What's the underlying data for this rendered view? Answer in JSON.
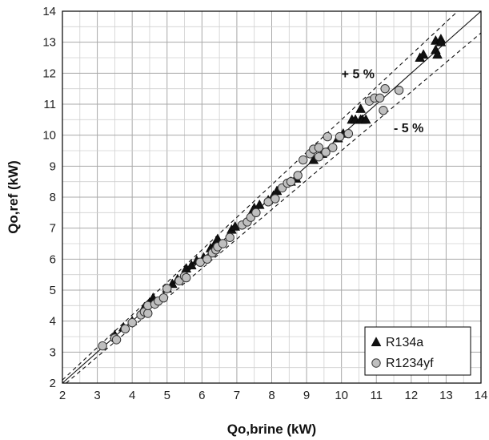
{
  "chart_data": {
    "type": "scatter",
    "xlabel": "Qo,brine (kW)",
    "ylabel": "Qo,ref (kW)",
    "xlim": [
      2,
      14
    ],
    "ylim": [
      2,
      14
    ],
    "xticks": [
      2,
      3,
      4,
      5,
      6,
      7,
      8,
      9,
      10,
      11,
      12,
      13,
      14
    ],
    "yticks": [
      2,
      3,
      4,
      5,
      6,
      7,
      8,
      9,
      10,
      11,
      12,
      13,
      14
    ],
    "grid": true,
    "legend_position": "bottom-right",
    "lines": [
      {
        "kind": "reference",
        "style": "solid",
        "factor": 1.0
      },
      {
        "kind": "plus-5-percent",
        "style": "dashed",
        "factor": 1.05
      },
      {
        "kind": "minus-5-percent",
        "style": "dashed",
        "factor": 0.95
      }
    ],
    "annotations": [
      {
        "text": "+ 5 %",
        "x": 10.0,
        "y": 12.0
      },
      {
        "text": "- 5 %",
        "x": 11.5,
        "y": 10.25
      }
    ],
    "series": [
      {
        "name": "R134a",
        "marker": "triangle",
        "color": "#111111",
        "points": [
          [
            3.5,
            3.55
          ],
          [
            3.75,
            3.8
          ],
          [
            4.0,
            4.0
          ],
          [
            4.35,
            4.45
          ],
          [
            4.5,
            4.6
          ],
          [
            4.6,
            4.75
          ],
          [
            5.0,
            5.05
          ],
          [
            5.15,
            5.2
          ],
          [
            5.3,
            5.35
          ],
          [
            5.55,
            5.7
          ],
          [
            5.7,
            5.8
          ],
          [
            5.85,
            5.95
          ],
          [
            6.05,
            6.05
          ],
          [
            6.25,
            6.35
          ],
          [
            6.35,
            6.45
          ],
          [
            6.4,
            6.55
          ],
          [
            6.45,
            6.65
          ],
          [
            6.85,
            6.95
          ],
          [
            6.95,
            7.05
          ],
          [
            7.45,
            7.55
          ],
          [
            7.5,
            7.65
          ],
          [
            7.65,
            7.75
          ],
          [
            7.9,
            7.9
          ],
          [
            8.05,
            8.05
          ],
          [
            8.15,
            8.2
          ],
          [
            8.55,
            8.5
          ],
          [
            8.7,
            8.6
          ],
          [
            9.2,
            9.2
          ],
          [
            9.45,
            9.4
          ],
          [
            9.9,
            9.9
          ],
          [
            10.05,
            10.05
          ],
          [
            10.3,
            10.5
          ],
          [
            10.4,
            10.5
          ],
          [
            10.55,
            10.5
          ],
          [
            10.6,
            10.5
          ],
          [
            10.7,
            10.5
          ],
          [
            10.55,
            10.85
          ],
          [
            12.25,
            12.5
          ],
          [
            12.35,
            12.6
          ],
          [
            12.7,
            12.75
          ],
          [
            12.75,
            12.6
          ],
          [
            12.7,
            13.05
          ],
          [
            12.85,
            13.1
          ],
          [
            12.85,
            13.0
          ]
        ]
      },
      {
        "name": "R1234yf",
        "marker": "circle",
        "color": "#bfbfbf",
        "points": [
          [
            3.15,
            3.2
          ],
          [
            3.5,
            3.45
          ],
          [
            3.55,
            3.4
          ],
          [
            3.8,
            3.75
          ],
          [
            4.0,
            3.95
          ],
          [
            4.25,
            4.2
          ],
          [
            4.35,
            4.3
          ],
          [
            4.45,
            4.25
          ],
          [
            4.45,
            4.5
          ],
          [
            4.65,
            4.55
          ],
          [
            4.75,
            4.65
          ],
          [
            4.9,
            4.75
          ],
          [
            5.0,
            5.05
          ],
          [
            5.35,
            5.3
          ],
          [
            5.5,
            5.45
          ],
          [
            5.55,
            5.4
          ],
          [
            5.95,
            5.9
          ],
          [
            6.15,
            6.0
          ],
          [
            6.3,
            6.2
          ],
          [
            6.4,
            6.3
          ],
          [
            6.45,
            6.4
          ],
          [
            6.6,
            6.5
          ],
          [
            6.8,
            6.7
          ],
          [
            7.15,
            7.1
          ],
          [
            7.3,
            7.2
          ],
          [
            7.4,
            7.35
          ],
          [
            7.55,
            7.5
          ],
          [
            7.9,
            7.85
          ],
          [
            8.1,
            7.95
          ],
          [
            8.3,
            8.3
          ],
          [
            8.45,
            8.45
          ],
          [
            8.55,
            8.5
          ],
          [
            8.75,
            8.7
          ],
          [
            8.9,
            9.2
          ],
          [
            9.1,
            9.4
          ],
          [
            9.2,
            9.55
          ],
          [
            9.35,
            9.6
          ],
          [
            9.35,
            9.3
          ],
          [
            9.55,
            9.45
          ],
          [
            9.6,
            9.95
          ],
          [
            9.75,
            9.6
          ],
          [
            9.95,
            9.95
          ],
          [
            10.2,
            10.05
          ],
          [
            10.8,
            11.1
          ],
          [
            10.95,
            11.2
          ],
          [
            11.1,
            11.2
          ],
          [
            11.25,
            11.5
          ],
          [
            11.2,
            10.8
          ],
          [
            11.65,
            11.45
          ]
        ]
      }
    ]
  }
}
